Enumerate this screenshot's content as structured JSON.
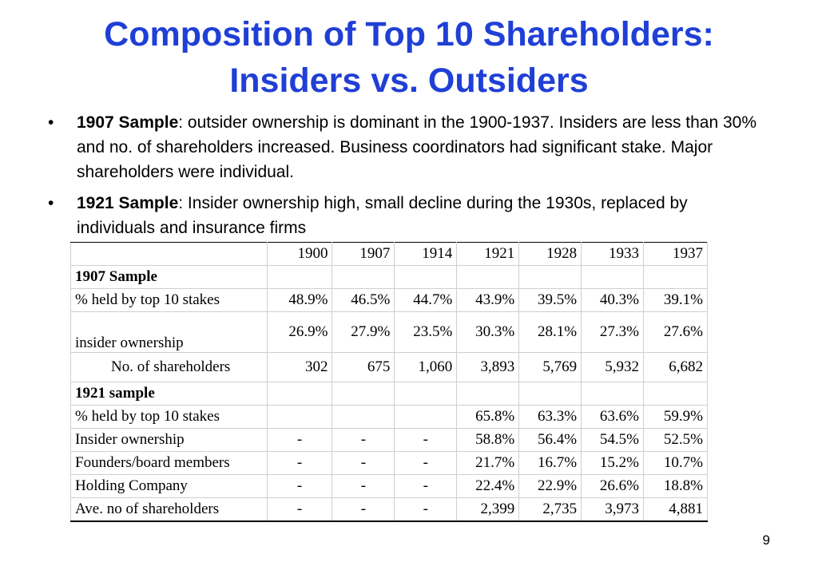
{
  "title": {
    "line1": "Composition of Top 10 Shareholders:",
    "line2": "Insiders vs. Outsiders"
  },
  "bullets": [
    {
      "bold": "1907 Sample",
      "text": ": outsider ownership is dominant in the 1900-1937.  Insiders are less than 30% and no. of shareholders increased.  Business coordinators had significant stake. Major shareholders were individual."
    },
    {
      "bold": "1921 Sample",
      "text": ": Insider ownership high, small decline during the 1930s, replaced  by individuals and insurance firms"
    }
  ],
  "table": {
    "years": [
      "1900",
      "1907",
      "1914",
      "1921",
      "1928",
      "1933",
      "1937"
    ],
    "section1": "1907 Sample",
    "rows1": [
      {
        "label": "% held by top 10 stakes",
        "values": [
          "48.9%",
          "46.5%",
          "44.7%",
          "43.9%",
          "39.5%",
          "40.3%",
          "39.1%"
        ]
      },
      {
        "label": "insider ownership",
        "values": [
          "26.9%",
          "27.9%",
          "23.5%",
          "30.3%",
          "28.1%",
          "27.3%",
          "27.6%"
        ]
      },
      {
        "label": "No. of shareholders",
        "values": [
          "302",
          "675",
          "1,060",
          "3,893",
          "5,769",
          "5,932",
          "6,682"
        ]
      }
    ],
    "section2": "1921 sample",
    "rows2": [
      {
        "label": "% held by top 10 stakes",
        "values": [
          "",
          "",
          "",
          "65.8%",
          "63.3%",
          "63.6%",
          "59.9%"
        ]
      },
      {
        "label": "Insider ownership",
        "values": [
          "-",
          "-",
          "-",
          "58.8%",
          "56.4%",
          "54.5%",
          "52.5%"
        ]
      },
      {
        "label": "Founders/board members",
        "values": [
          "-",
          "-",
          "-",
          "21.7%",
          "16.7%",
          "15.2%",
          "10.7%"
        ]
      },
      {
        "label": "Holding Company",
        "values": [
          "-",
          "-",
          "-",
          "22.4%",
          "22.9%",
          "26.6%",
          "18.8%"
        ]
      },
      {
        "label": "Ave. no of shareholders",
        "values": [
          "-",
          "-",
          "-",
          "2,399",
          "2,735",
          "3,973",
          "4,881"
        ]
      }
    ]
  },
  "page_number": "9"
}
